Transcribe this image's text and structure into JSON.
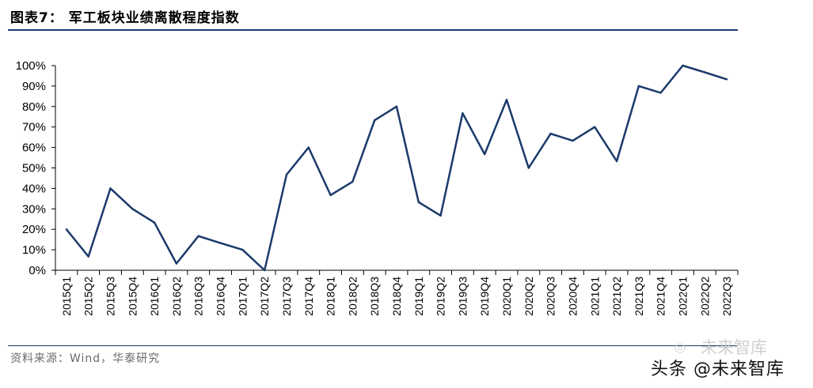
{
  "title": "图表7：  军工板块业绩离散程度指数",
  "source": "资料来源：Wind，华泰研究",
  "watermark": {
    "brand": "头条 @未来智库",
    "ghost": "未来智库",
    "icon": "wechat-icon"
  },
  "colors": {
    "line": "#1b3a6b",
    "rule": "#1b3a6b",
    "text": "#000000"
  },
  "chart_data": {
    "type": "line",
    "ylim": [
      0,
      100
    ],
    "yticks": [
      0,
      10,
      20,
      30,
      40,
      50,
      60,
      70,
      80,
      90,
      100
    ],
    "ytick_labels": [
      "0%",
      "10%",
      "20%",
      "30%",
      "40%",
      "50%",
      "60%",
      "70%",
      "80%",
      "90%",
      "100%"
    ],
    "grid": false,
    "categories": [
      "2015Q1",
      "2015Q2",
      "2015Q3",
      "2015Q4",
      "2016Q1",
      "2016Q2",
      "2016Q3",
      "2016Q4",
      "2017Q1",
      "2017Q2",
      "2017Q3",
      "2017Q4",
      "2018Q1",
      "2018Q2",
      "2018Q3",
      "2018Q4",
      "2019Q1",
      "2019Q2",
      "2019Q3",
      "2019Q4",
      "2020Q1",
      "2020Q2",
      "2020Q3",
      "2020Q4",
      "2021Q1",
      "2021Q2",
      "2021Q3",
      "2021Q4",
      "2022Q1",
      "2022Q2",
      "2022Q3"
    ],
    "series": [
      {
        "values": [
          20,
          6.7,
          40,
          30,
          23.3,
          3.3,
          16.7,
          13.3,
          10,
          0,
          46.7,
          60,
          36.7,
          43.3,
          73.3,
          80,
          33.3,
          26.7,
          76.7,
          56.7,
          83.3,
          50,
          66.7,
          63.3,
          70,
          53.3,
          90,
          86.7,
          100,
          96.7,
          93.3
        ]
      }
    ]
  }
}
